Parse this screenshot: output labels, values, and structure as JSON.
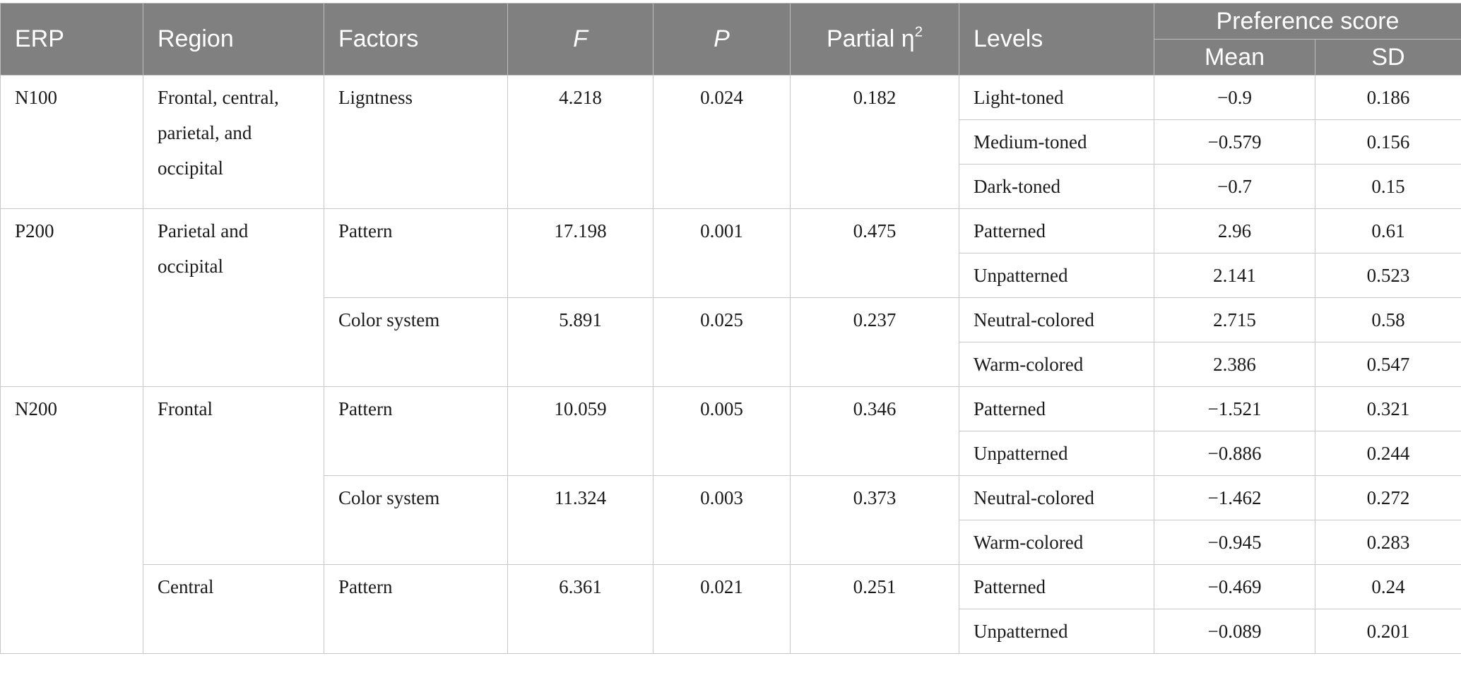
{
  "header": {
    "erp": "ERP",
    "region": "Region",
    "factors": "Factors",
    "f": "F",
    "p": "P",
    "eta": "Partial η",
    "eta_sup": "2",
    "levels": "Levels",
    "preference": "Preference score",
    "mean": "Mean",
    "sd": "SD"
  },
  "rows": {
    "n100": {
      "erp": "N100",
      "region": "Frontal, central, parietal, and occipital",
      "factor": "Ligntness",
      "f": "4.218",
      "p": "0.024",
      "eta": "0.182",
      "levels": [
        {
          "level": "Light-toned",
          "mean": "−0.9",
          "sd": "0.186"
        },
        {
          "level": "Medium-toned",
          "mean": "−0.579",
          "sd": "0.156"
        },
        {
          "level": "Dark-toned",
          "mean": "−0.7",
          "sd": "0.15"
        }
      ]
    },
    "p200": {
      "erp": "P200",
      "region": "Parietal and occipital",
      "pattern": {
        "factor": "Pattern",
        "f": "17.198",
        "p": "0.001",
        "eta": "0.475",
        "levels": [
          {
            "level": "Patterned",
            "mean": "2.96",
            "sd": "0.61"
          },
          {
            "level": "Unpatterned",
            "mean": "2.141",
            "sd": "0.523"
          }
        ]
      },
      "color": {
        "factor": "Color system",
        "f": "5.891",
        "p": "0.025",
        "eta": "0.237",
        "levels": [
          {
            "level": "Neutral-colored",
            "mean": "2.715",
            "sd": "0.58"
          },
          {
            "level": "Warm-colored",
            "mean": "2.386",
            "sd": "0.547"
          }
        ]
      }
    },
    "n200": {
      "erp": "N200",
      "frontal": {
        "region": "Frontal",
        "pattern": {
          "factor": "Pattern",
          "f": "10.059",
          "p": "0.005",
          "eta": "0.346",
          "levels": [
            {
              "level": "Patterned",
              "mean": "−1.521",
              "sd": "0.321"
            },
            {
              "level": "Unpatterned",
              "mean": "−0.886",
              "sd": "0.244"
            }
          ]
        },
        "color": {
          "factor": "Color system",
          "f": "11.324",
          "p": "0.003",
          "eta": "0.373",
          "levels": [
            {
              "level": "Neutral-colored",
              "mean": "−1.462",
              "sd": "0.272"
            },
            {
              "level": "Warm-colored",
              "mean": "−0.945",
              "sd": "0.283"
            }
          ]
        }
      },
      "central": {
        "region": "Central",
        "pattern": {
          "factor": "Pattern",
          "f": "6.361",
          "p": "0.021",
          "eta": "0.251",
          "levels": [
            {
              "level": "Patterned",
              "mean": "−0.469",
              "sd": "0.24"
            },
            {
              "level": "Unpatterned",
              "mean": "−0.089",
              "sd": "0.201"
            }
          ]
        }
      }
    }
  }
}
